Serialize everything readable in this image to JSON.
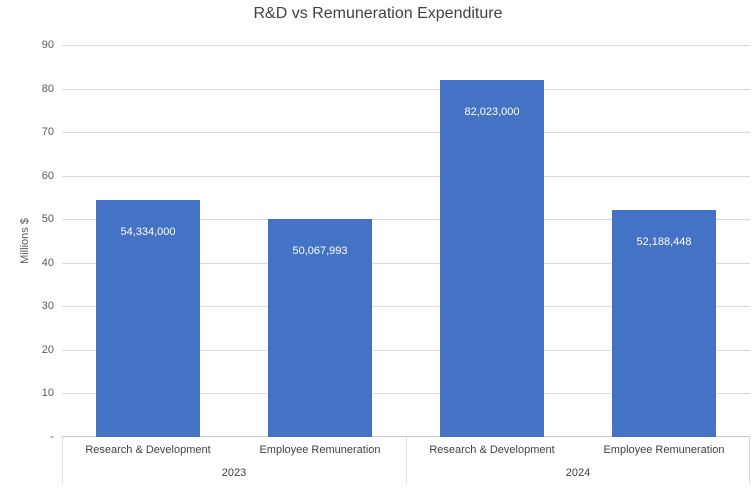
{
  "chart_data": {
    "type": "bar",
    "title": "R&D vs Remuneration Expenditure",
    "xlabel": "",
    "ylabel": "Millions $",
    "ylim": [
      0,
      90
    ],
    "ytick_step": 10,
    "ytick_labels": [
      "-",
      "10",
      "20",
      "30",
      "40",
      "50",
      "60",
      "70",
      "80",
      "90"
    ],
    "bar_color": "#4472C4",
    "data_label_color": "#ffffff",
    "grid": true,
    "legend": false,
    "groups": [
      {
        "label": "2023",
        "bars": [
          {
            "category": "Research & Development",
            "value": 54.334,
            "data_label": "54,334,000"
          },
          {
            "category": "Employee Remuneration",
            "value": 50.067993,
            "data_label": "50,067,993"
          }
        ]
      },
      {
        "label": "2024",
        "bars": [
          {
            "category": "Research & Development",
            "value": 82.023,
            "data_label": "82,023,000"
          },
          {
            "category": "Employee Remuneration",
            "value": 52.188448,
            "data_label": "52,188,448"
          }
        ]
      }
    ]
  }
}
